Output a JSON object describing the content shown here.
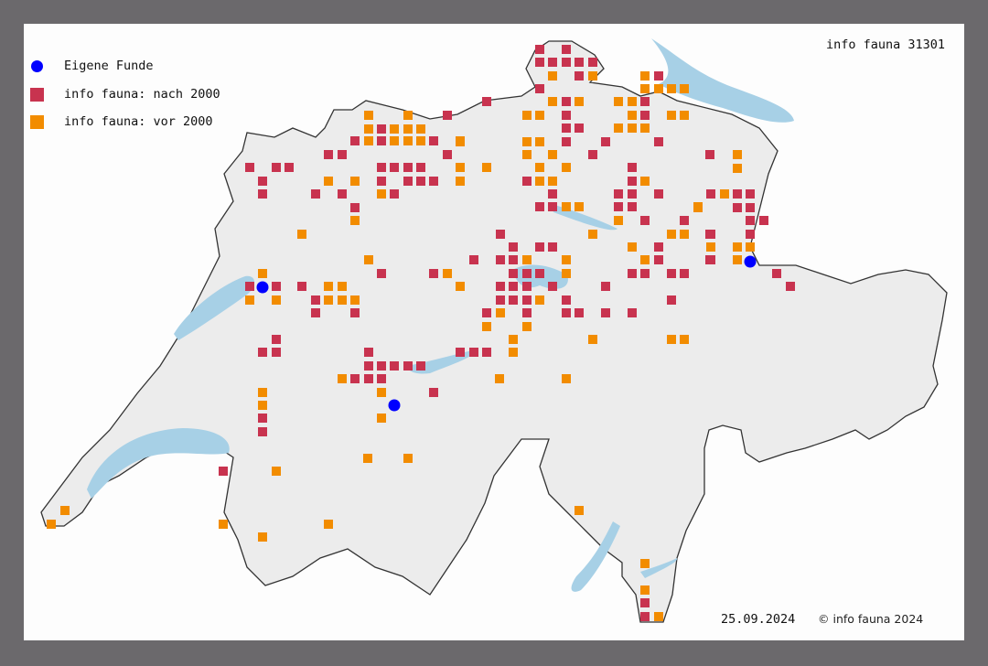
{
  "title": "info fauna 31301",
  "legend": [
    {
      "label": "Eigene Funde",
      "symbol": "circle",
      "color": "#0000ff"
    },
    {
      "label": "info fauna: nach 2000",
      "symbol": "square",
      "color": "#c8334f"
    },
    {
      "label": "info fauna: vor 2000",
      "symbol": "square",
      "color": "#f28c00"
    }
  ],
  "footer": {
    "date": "25.09.2024",
    "copyright": "© info fauna 2024"
  },
  "colors": {
    "frame": "#6b696c",
    "land": "#ececec",
    "water": "#a7d0e6",
    "border": "#333333"
  }
}
